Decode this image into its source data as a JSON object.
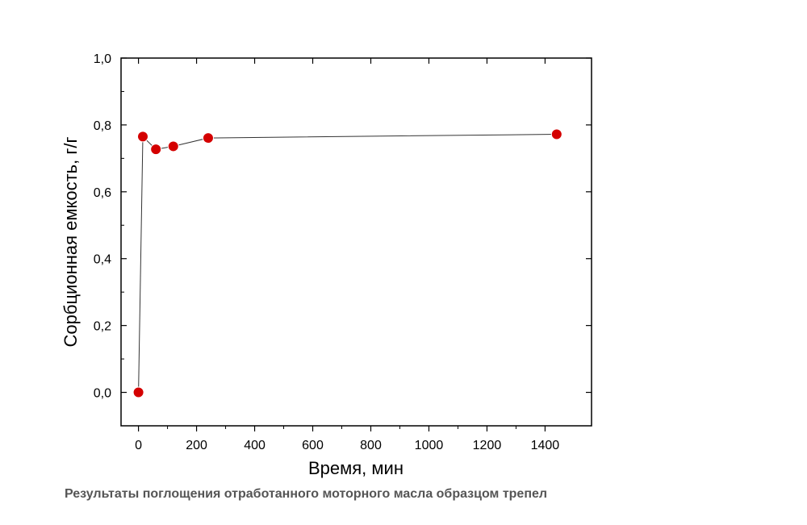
{
  "chart_data": {
    "type": "scatter",
    "connected": true,
    "xlabel": "Время, мин",
    "ylabel": "Сорбционная емкость, г/г",
    "xlim": [
      -60,
      1560
    ],
    "ylim": [
      -0.1,
      1.0
    ],
    "x_ticks": [
      0,
      200,
      400,
      600,
      800,
      1000,
      1200,
      1400
    ],
    "x_tick_labels": [
      "0",
      "200",
      "400",
      "600",
      "800",
      "1000",
      "1200",
      "1400"
    ],
    "y_ticks": [
      0.0,
      0.2,
      0.4,
      0.6,
      0.8,
      1.0
    ],
    "y_tick_labels": [
      "0,0",
      "0,2",
      "0,4",
      "0,6",
      "0,8",
      "1,0"
    ],
    "grid": false,
    "series": [
      {
        "x": [
          0,
          15,
          60,
          120,
          240,
          1440
        ],
        "y": [
          0.0,
          0.765,
          0.727,
          0.736,
          0.761,
          0.772
        ],
        "color": "#d40000",
        "line_color": "#333333"
      }
    ]
  },
  "caption": "Результаты поглощения отработанного моторного масла образцом трепел"
}
